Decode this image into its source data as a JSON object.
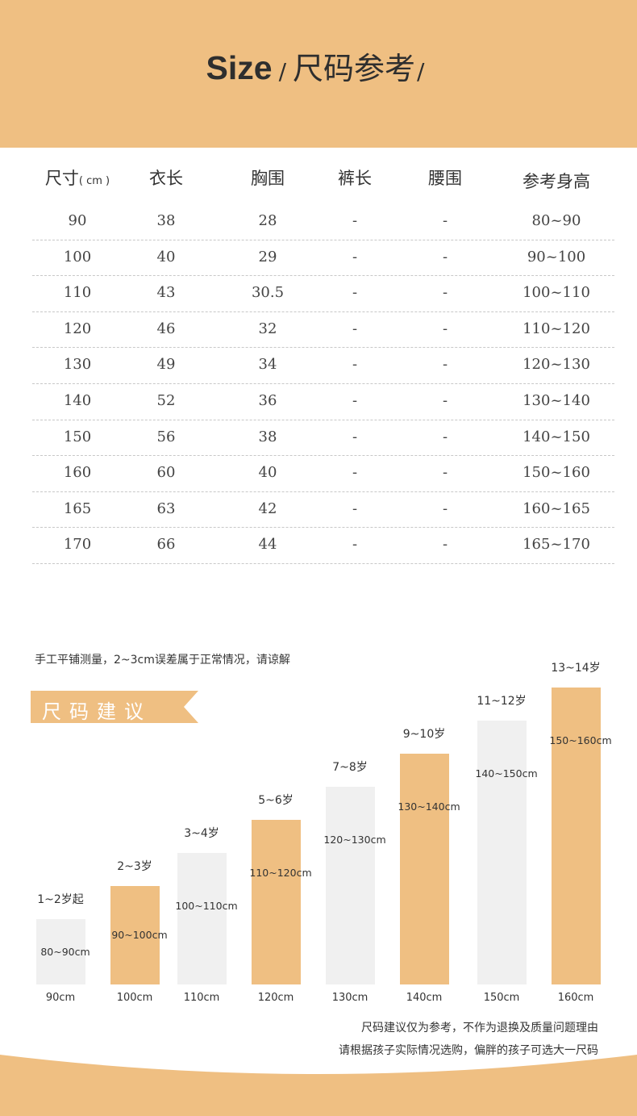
{
  "header": {
    "title_en": "Size",
    "slash1": "/",
    "title_cn": "尺码参考",
    "slash2": "/"
  },
  "table": {
    "headers": [
      "尺寸",
      "衣长",
      "胸围",
      "裤长",
      "腰围",
      "参考身高"
    ],
    "unit": "( cm )",
    "rows": [
      [
        "90",
        "38",
        "28",
        "-",
        "-",
        "80~90"
      ],
      [
        "100",
        "40",
        "29",
        "-",
        "-",
        "90~100"
      ],
      [
        "110",
        "43",
        "30.5",
        "-",
        "-",
        "100~110"
      ],
      [
        "120",
        "46",
        "32",
        "-",
        "-",
        "110~120"
      ],
      [
        "130",
        "49",
        "34",
        "-",
        "-",
        "120~130"
      ],
      [
        "140",
        "52",
        "36",
        "-",
        "-",
        "130~140"
      ],
      [
        "150",
        "56",
        "38",
        "-",
        "-",
        "140~150"
      ],
      [
        "160",
        "60",
        "40",
        "-",
        "-",
        "150~160"
      ],
      [
        "165",
        "63",
        "42",
        "-",
        "-",
        "160~165"
      ],
      [
        "170",
        "66",
        "44",
        "-",
        "-",
        "165~170"
      ]
    ]
  },
  "note": "手工平铺测量，2~3cm误差属于正常情况，请谅解",
  "banner": {
    "label": "尺码建议"
  },
  "chart_data": {
    "type": "bar",
    "categories": [
      "90cm",
      "100cm",
      "110cm",
      "120cm",
      "130cm",
      "140cm",
      "150cm",
      "160cm"
    ],
    "ages": [
      "1~2岁起",
      "2~3岁",
      "3~4岁",
      "5~6岁",
      "7~8岁",
      "9~10岁",
      "11~12岁",
      "13~14岁"
    ],
    "ranges": [
      "80~90cm",
      "90~100cm",
      "100~110cm",
      "110~120cm",
      "120~130cm",
      "130~140cm",
      "140~150cm",
      "150~160cm"
    ],
    "values": [
      90,
      100,
      110,
      120,
      130,
      140,
      150,
      160
    ],
    "colors": [
      "#f0f0f0",
      "#efbf82",
      "#f0f0f0",
      "#efbf82",
      "#f0f0f0",
      "#efbf82",
      "#f0f0f0",
      "#efbf82"
    ]
  },
  "disclaimer": {
    "line1": "尺码建议仅为参考，不作为退换及质量问题理由",
    "line2": "请根据孩子实际情况选购，偏胖的孩子可选大一尺码"
  },
  "colors": {
    "accent": "#efbf82",
    "gray_bar": "#f0f0f0"
  }
}
